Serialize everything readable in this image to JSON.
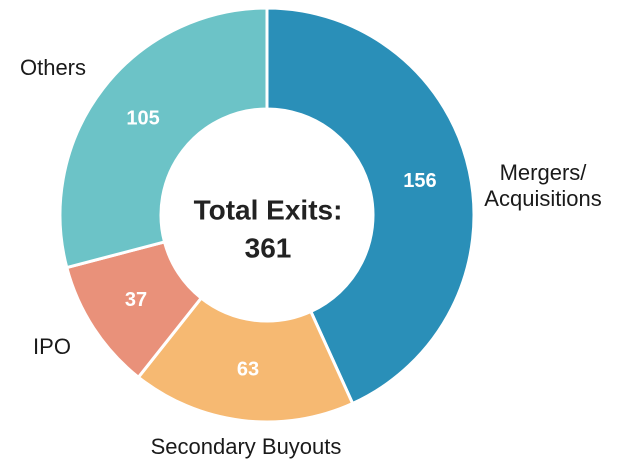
{
  "chart_data": {
    "type": "donut",
    "categories": [
      "Mergers/ Acquisitions",
      "Secondary Buyouts",
      "IPO",
      "Others"
    ],
    "values": [
      156,
      63,
      37,
      105
    ],
    "colors": [
      "#2a8fb8",
      "#f6b972",
      "#e9917a",
      "#6cc3c7"
    ],
    "center_label": "Total Exits:",
    "total": 361
  }
}
